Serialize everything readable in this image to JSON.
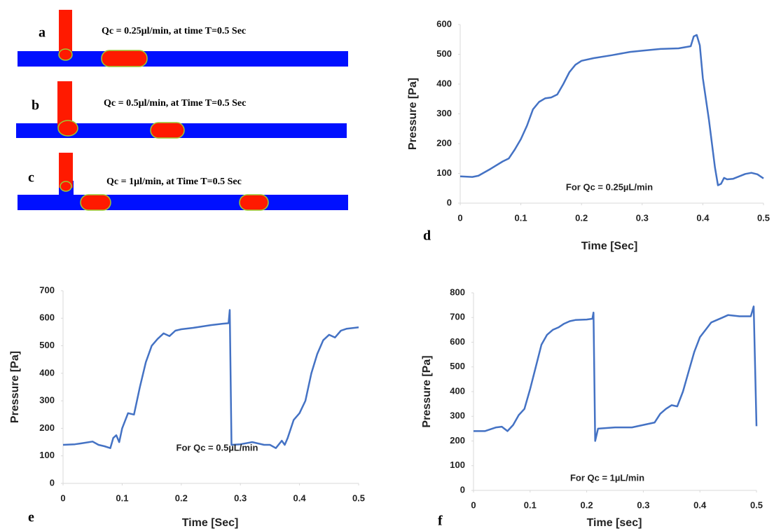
{
  "diagrams": [
    {
      "letter": "a",
      "caption": "Qc = 0.25µl/min, at time T=0.5 Sec"
    },
    {
      "letter": "b",
      "caption": "Qc = 0.5µl/min, at Time T=0.5 Sec"
    },
    {
      "letter": "c",
      "caption": "Qc = 1µl/min, at Time T=0.5 Sec"
    }
  ],
  "chart_data": [
    {
      "type": "line",
      "panel": "d",
      "annotation": "For Qc = 0.25µL/min",
      "xlabel": "Time [Sec]",
      "ylabel": "Pressure [Pa]",
      "xlim": [
        0,
        0.5
      ],
      "xticks": [
        0,
        0.1,
        0.2,
        0.3,
        0.4,
        0.5
      ],
      "ylim": [
        0,
        600
      ],
      "yticks": [
        0,
        100,
        200,
        300,
        400,
        500,
        600
      ],
      "x": [
        0,
        0.02,
        0.03,
        0.05,
        0.07,
        0.08,
        0.09,
        0.1,
        0.11,
        0.12,
        0.13,
        0.14,
        0.15,
        0.16,
        0.17,
        0.18,
        0.19,
        0.2,
        0.22,
        0.25,
        0.28,
        0.3,
        0.33,
        0.36,
        0.38,
        0.385,
        0.39,
        0.395,
        0.4,
        0.41,
        0.42,
        0.425,
        0.43,
        0.435,
        0.44,
        0.45,
        0.47,
        0.48,
        0.49,
        0.5
      ],
      "series": [
        {
          "color": "#4472c4",
          "values": [
            90,
            88,
            92,
            115,
            140,
            150,
            180,
            215,
            260,
            315,
            340,
            352,
            355,
            365,
            400,
            440,
            465,
            478,
            487,
            497,
            508,
            512,
            518,
            520,
            527,
            560,
            565,
            530,
            420,
            280,
            120,
            60,
            65,
            85,
            80,
            82,
            98,
            102,
            97,
            83
          ]
        }
      ]
    },
    {
      "type": "line",
      "panel": "e",
      "annotation": "For Qc = 0.5µL/min",
      "xlabel": "Time [Sec]",
      "ylabel": "Pressure [Pa]",
      "xlim": [
        0,
        0.5
      ],
      "xticks": [
        0,
        0.1,
        0.2,
        0.3,
        0.4,
        0.5
      ],
      "ylim": [
        0,
        700
      ],
      "yticks": [
        0,
        100,
        200,
        300,
        400,
        500,
        600,
        700
      ],
      "x": [
        0,
        0.02,
        0.03,
        0.05,
        0.06,
        0.07,
        0.08,
        0.085,
        0.09,
        0.095,
        0.1,
        0.11,
        0.12,
        0.13,
        0.14,
        0.15,
        0.16,
        0.17,
        0.18,
        0.19,
        0.2,
        0.22,
        0.25,
        0.27,
        0.28,
        0.282,
        0.285,
        0.3,
        0.32,
        0.34,
        0.35,
        0.36,
        0.37,
        0.375,
        0.38,
        0.39,
        0.4,
        0.41,
        0.42,
        0.43,
        0.44,
        0.45,
        0.46,
        0.47,
        0.48,
        0.5
      ],
      "series": [
        {
          "color": "#4472c4",
          "values": [
            140,
            142,
            145,
            152,
            140,
            135,
            128,
            165,
            175,
            150,
            200,
            255,
            250,
            350,
            440,
            500,
            525,
            545,
            535,
            555,
            560,
            565,
            575,
            580,
            582,
            630,
            140,
            142,
            150,
            140,
            140,
            128,
            155,
            140,
            165,
            230,
            255,
            300,
            400,
            470,
            520,
            540,
            530,
            555,
            562,
            567
          ]
        }
      ]
    },
    {
      "type": "line",
      "panel": "f",
      "annotation": "For Qc = 1µL/min",
      "xlabel": "Time [sec]",
      "ylabel": "Pressure [Pa]",
      "xlim": [
        0,
        0.5
      ],
      "xticks": [
        0,
        0.1,
        0.2,
        0.3,
        0.4,
        0.5
      ],
      "ylim": [
        0,
        800
      ],
      "yticks": [
        0,
        100,
        200,
        300,
        400,
        500,
        600,
        700,
        800
      ],
      "x": [
        0,
        0.02,
        0.04,
        0.05,
        0.06,
        0.07,
        0.08,
        0.09,
        0.1,
        0.11,
        0.12,
        0.13,
        0.14,
        0.15,
        0.16,
        0.17,
        0.18,
        0.2,
        0.21,
        0.212,
        0.215,
        0.22,
        0.25,
        0.28,
        0.3,
        0.32,
        0.33,
        0.34,
        0.35,
        0.36,
        0.37,
        0.38,
        0.39,
        0.4,
        0.41,
        0.42,
        0.43,
        0.44,
        0.45,
        0.47,
        0.49,
        0.495,
        0.5
      ],
      "series": [
        {
          "color": "#4472c4",
          "values": [
            240,
            240,
            255,
            258,
            240,
            265,
            305,
            330,
            410,
            500,
            590,
            630,
            650,
            660,
            675,
            685,
            690,
            692,
            695,
            720,
            200,
            250,
            255,
            255,
            265,
            275,
            310,
            330,
            345,
            340,
            400,
            480,
            560,
            620,
            650,
            680,
            690,
            700,
            710,
            705,
            705,
            745,
            260
          ]
        }
      ]
    }
  ]
}
